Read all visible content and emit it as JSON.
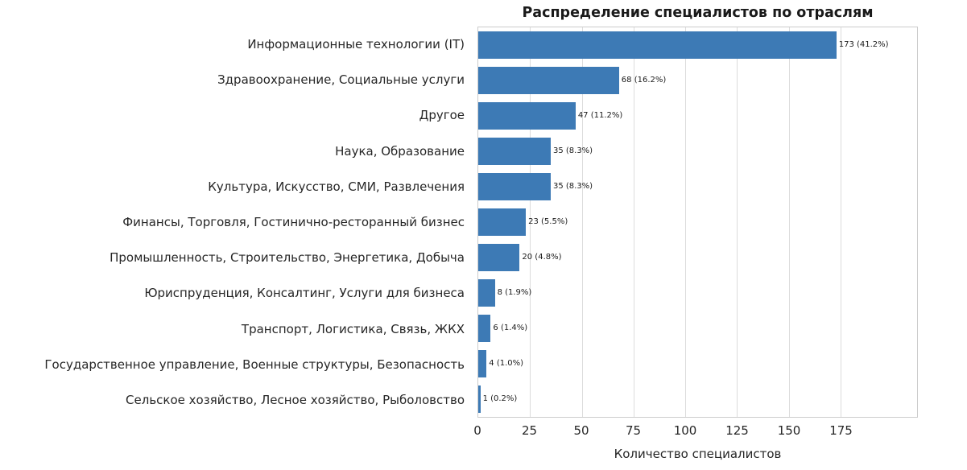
{
  "title": "Распределение специалистов по отраслям",
  "chart_data": {
    "type": "bar",
    "orientation": "horizontal",
    "title": "Распределение специалистов по отраслям",
    "xlabel": "Количество специалистов",
    "ylabel": "",
    "categories": [
      "Информационные технологии (IT)",
      "Здравоохранение, Социальные услуги",
      "Другое",
      "Наука, Образование",
      "Культура, Искусство, СМИ, Развлечения",
      "Финансы, Торговля, Гостинично-ресторанный бизнес",
      "Промышленность, Строительство, Энергетика, Добыча",
      "Юриспруденция, Консалтинг, Услуги для бизнеса",
      "Транспорт, Логистика, Связь, ЖКХ",
      "Государственное управление, Военные структуры, Безопасность",
      "Сельское хозяйство, Лесное хозяйство, Рыболовство"
    ],
    "values": [
      173,
      68,
      47,
      35,
      35,
      23,
      20,
      8,
      6,
      4,
      1
    ],
    "percentages": [
      41.2,
      16.2,
      11.2,
      8.3,
      8.3,
      5.5,
      4.8,
      1.9,
      1.4,
      1.0,
      0.2
    ],
    "value_labels": [
      "173 (41.2%)",
      "68 (16.2%)",
      "47 (11.2%)",
      "35 (8.3%)",
      "35 (8.3%)",
      "23 (5.5%)",
      "20 (4.8%)",
      "8 (1.9%)",
      "6 (1.4%)",
      "4 (1.0%)",
      "1 (0.2%)"
    ],
    "xticks": [
      0,
      25,
      50,
      75,
      100,
      125,
      150,
      175
    ],
    "xlim": [
      0,
      212
    ],
    "grid": "vertical",
    "legend": "none",
    "bar_color": "#3d7ab5"
  }
}
